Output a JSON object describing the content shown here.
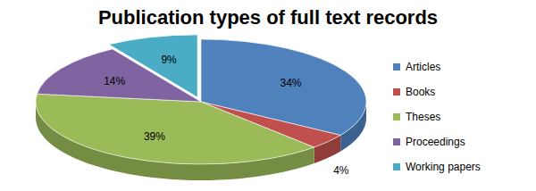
{
  "chart_data": {
    "type": "pie",
    "title": "Publication types of full text records",
    "categories": [
      "Articles",
      "Books",
      "Theses",
      "Proceedings",
      "Working papers"
    ],
    "values": [
      34,
      4,
      39,
      14,
      9
    ],
    "value_labels": [
      "34%",
      "4%",
      "39%",
      "14%",
      "9%"
    ],
    "colors": [
      "#4f81bd",
      "#c0504d",
      "#9bbb59",
      "#8064a2",
      "#4bacc6"
    ],
    "data_labels": true,
    "legend": "right"
  }
}
